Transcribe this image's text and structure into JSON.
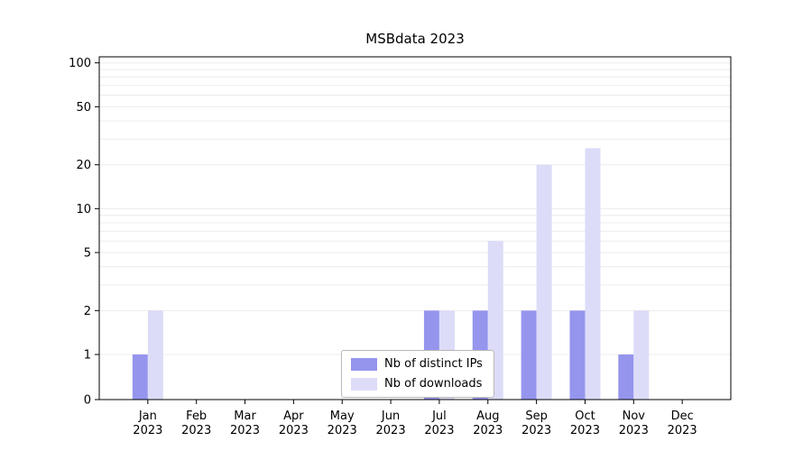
{
  "chart_data": {
    "type": "bar",
    "title": "MSBdata 2023",
    "categories": [
      "Jan",
      "Feb",
      "Mar",
      "Apr",
      "May",
      "Jun",
      "Jul",
      "Aug",
      "Sep",
      "Oct",
      "Nov",
      "Dec"
    ],
    "year_label": "2023",
    "series": [
      {
        "name": "Nb of distinct IPs",
        "color": "#9595ee",
        "values": [
          1,
          0,
          0,
          0,
          0,
          0,
          2,
          2,
          2,
          2,
          1,
          0
        ]
      },
      {
        "name": "Nb of downloads",
        "color": "#dcdcf8",
        "values": [
          2,
          0,
          0,
          0,
          0,
          0,
          2,
          6,
          20,
          26,
          2,
          0
        ]
      }
    ],
    "yticks": [
      0,
      1,
      2,
      5,
      10,
      20,
      50,
      100
    ],
    "scale": "symlog",
    "ylim": [
      0,
      110
    ],
    "grid": "horizontal-minor",
    "grid_color": "#ececec",
    "axis_color": "#000000",
    "legend_position": "lower center"
  }
}
